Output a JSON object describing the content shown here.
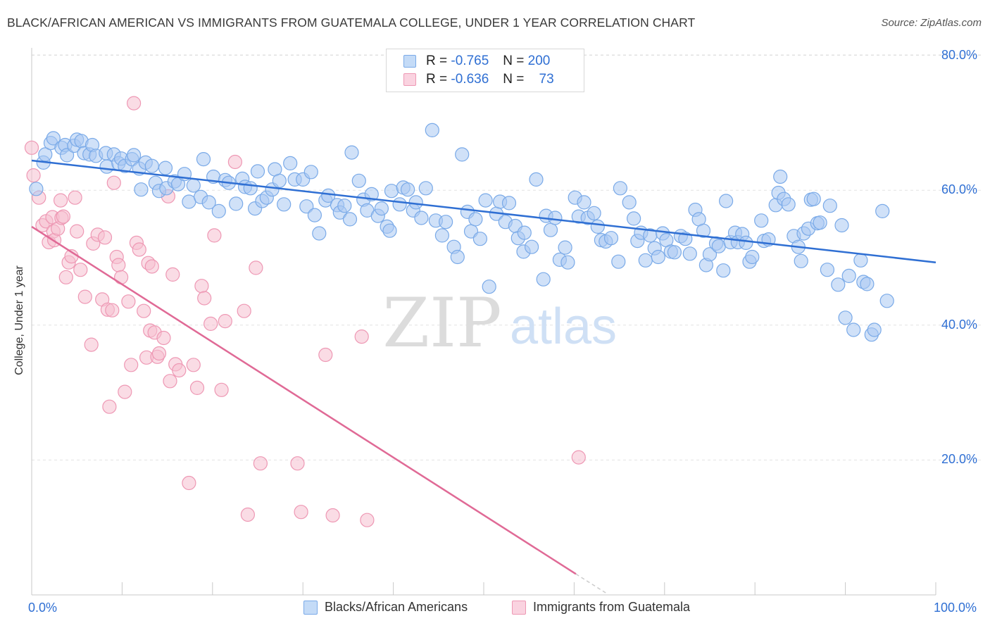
{
  "header": {
    "title": "BLACK/AFRICAN AMERICAN VS IMMIGRANTS FROM GUATEMALA COLLEGE, UNDER 1 YEAR CORRELATION CHART",
    "source": "Source: ZipAtlas.com"
  },
  "watermark": {
    "zip": "ZIP",
    "atlas": "atlas"
  },
  "legend_stats": {
    "rows": [
      {
        "r_label": "R =",
        "r_value": "-0.765",
        "n_label": "N =",
        "n_value": "200"
      },
      {
        "r_label": "R =",
        "r_value": "-0.636",
        "n_label": "N =",
        "n_value": "73"
      }
    ]
  },
  "colors": {
    "blue_fill": "#a9c8f3",
    "blue_stroke": "#7aaae8",
    "blue_line": "#2f6fd3",
    "pink_fill": "#f6bfd0",
    "pink_stroke": "#ee98b4",
    "pink_line": "#e06a96",
    "tick_label": "#2f6fd3",
    "grid": "#e2e2e2"
  },
  "chart_data": {
    "type": "scatter",
    "title": "BLACK/AFRICAN AMERICAN VS IMMIGRANTS FROM GUATEMALA COLLEGE, UNDER 1 YEAR CORRELATION CHART",
    "xlabel": "",
    "ylabel": "College, Under 1 year",
    "xlim": [
      0,
      100
    ],
    "ylim": [
      0,
      85
    ],
    "x_ticks": [
      "0.0%",
      "100.0%"
    ],
    "y_ticks": [
      {
        "value": 20,
        "label": "20.0%"
      },
      {
        "value": 40,
        "label": "40.0%"
      },
      {
        "value": 60,
        "label": "60.0%"
      },
      {
        "value": 80,
        "label": "80.0%"
      }
    ],
    "grid": true,
    "legend_position": "bottom",
    "series": [
      {
        "name": "Blacks/African Americans",
        "color": "#a9c8f3",
        "trend": {
          "x": [
            0,
            100
          ],
          "y": [
            64.4,
            49.3
          ]
        },
        "points": [
          [
            0.5,
            60.2
          ],
          [
            1.3,
            64.1
          ],
          [
            1.5,
            65.3
          ],
          [
            2.1,
            67
          ],
          [
            2.4,
            67.7
          ],
          [
            3.3,
            66.3
          ],
          [
            3.7,
            66.7
          ],
          [
            3.9,
            65.2
          ],
          [
            4.7,
            66.6
          ],
          [
            5,
            67.5
          ],
          [
            5.5,
            67.3
          ],
          [
            5.8,
            65.5
          ],
          [
            6.4,
            65.3
          ],
          [
            6.7,
            66.7
          ],
          [
            7.1,
            65.1
          ],
          [
            8.2,
            65.5
          ],
          [
            8.3,
            63.5
          ],
          [
            9.1,
            65.3
          ],
          [
            9.6,
            64
          ],
          [
            9.9,
            64.7
          ],
          [
            10.3,
            63.6
          ],
          [
            11.1,
            64.6
          ],
          [
            11.3,
            65.2
          ],
          [
            11.9,
            63.2
          ],
          [
            12.1,
            60.1
          ],
          [
            12.6,
            64.1
          ],
          [
            13.3,
            63.6
          ],
          [
            13.7,
            61.1
          ],
          [
            14.1,
            59.9
          ],
          [
            14.8,
            63.3
          ],
          [
            14.9,
            60.3
          ],
          [
            15.8,
            61.3
          ],
          [
            16.2,
            60.9
          ],
          [
            16.9,
            62.4
          ],
          [
            17.4,
            58.3
          ],
          [
            17.9,
            60.7
          ],
          [
            18.7,
            59
          ],
          [
            19,
            64.6
          ],
          [
            19.6,
            58.2
          ],
          [
            20.1,
            62
          ],
          [
            20.7,
            56.9
          ],
          [
            21.4,
            61.5
          ],
          [
            21.8,
            61.1
          ],
          [
            22.6,
            58
          ],
          [
            23.3,
            61.7
          ],
          [
            23.6,
            60.5
          ],
          [
            24.2,
            60.3
          ],
          [
            24.7,
            57.3
          ],
          [
            25,
            62.8
          ],
          [
            25.5,
            58.4
          ],
          [
            26,
            58.9
          ],
          [
            26.6,
            60.1
          ],
          [
            26.9,
            63.1
          ],
          [
            27.4,
            61.4
          ],
          [
            27.9,
            57.9
          ],
          [
            28.6,
            64
          ],
          [
            29.1,
            61.6
          ],
          [
            30,
            61.6
          ],
          [
            30.4,
            57.6
          ],
          [
            30.9,
            62.7
          ],
          [
            31.3,
            56.3
          ],
          [
            31.8,
            53.6
          ],
          [
            32.5,
            58.5
          ],
          [
            32.8,
            59.2
          ],
          [
            33.8,
            57.8
          ],
          [
            34.1,
            56.7
          ],
          [
            34.6,
            57.7
          ],
          [
            35.2,
            55.7
          ],
          [
            35.4,
            65.6
          ],
          [
            36.2,
            61.4
          ],
          [
            36.7,
            58.6
          ],
          [
            37.1,
            57
          ],
          [
            37.6,
            59.4
          ],
          [
            38.3,
            56.2
          ],
          [
            38.7,
            57.3
          ],
          [
            39.3,
            54.6
          ],
          [
            39.6,
            54
          ],
          [
            39.8,
            59.9
          ],
          [
            40.7,
            57.9
          ],
          [
            41.1,
            60.4
          ],
          [
            41.6,
            60.1
          ],
          [
            42.2,
            57
          ],
          [
            42.5,
            58.2
          ],
          [
            43.1,
            55.9
          ],
          [
            43.6,
            60.3
          ],
          [
            44.3,
            68.9
          ],
          [
            44.7,
            55.5
          ],
          [
            45.4,
            53.3
          ],
          [
            45.8,
            55.3
          ],
          [
            46.7,
            51.6
          ],
          [
            47.1,
            50.1
          ],
          [
            47.6,
            65.3
          ],
          [
            48.2,
            56.8
          ],
          [
            48.6,
            53.9
          ],
          [
            49.1,
            55.7
          ],
          [
            49.6,
            52.8
          ],
          [
            50.2,
            58.5
          ],
          [
            50.6,
            45.7
          ],
          [
            51.4,
            56.5
          ],
          [
            51.8,
            58.3
          ],
          [
            52.4,
            55.3
          ],
          [
            52.8,
            58.1
          ],
          [
            53.5,
            54.7
          ],
          [
            53.8,
            52.9
          ],
          [
            54.4,
            50.9
          ],
          [
            54.5,
            53.7
          ],
          [
            55.3,
            51.6
          ],
          [
            55.8,
            61.6
          ],
          [
            56.6,
            46.8
          ],
          [
            56.9,
            56.2
          ],
          [
            57.4,
            54.1
          ],
          [
            57.9,
            55.9
          ],
          [
            58.4,
            49.7
          ],
          [
            59,
            51.5
          ],
          [
            59.3,
            49.3
          ],
          [
            60.1,
            58.9
          ],
          [
            60.5,
            56.1
          ],
          [
            61.1,
            58.2
          ],
          [
            61.5,
            55.9
          ],
          [
            62.2,
            56.6
          ],
          [
            62.6,
            54.6
          ],
          [
            63,
            52.6
          ],
          [
            63.5,
            52.4
          ],
          [
            64.1,
            52.9
          ],
          [
            64.9,
            49.4
          ],
          [
            65.1,
            60.3
          ],
          [
            66.1,
            58.2
          ],
          [
            66.6,
            55.8
          ],
          [
            67,
            52.5
          ],
          [
            67.4,
            53.7
          ],
          [
            67.9,
            49.6
          ],
          [
            68.4,
            53.3
          ],
          [
            68.9,
            51.4
          ],
          [
            69.3,
            50.1
          ],
          [
            69.8,
            53.6
          ],
          [
            70.2,
            52.6
          ],
          [
            70.7,
            50.9
          ],
          [
            71.1,
            50.8
          ],
          [
            71.8,
            53.2
          ],
          [
            72.3,
            52.8
          ],
          [
            72.8,
            50.6
          ],
          [
            73.4,
            57.1
          ],
          [
            73.8,
            55.7
          ],
          [
            74.3,
            54
          ],
          [
            74.6,
            48.9
          ],
          [
            75,
            50.5
          ],
          [
            75.7,
            52.1
          ],
          [
            76,
            51.7
          ],
          [
            76.5,
            48.1
          ],
          [
            76.8,
            58.4
          ],
          [
            77.3,
            52.3
          ],
          [
            77.8,
            53.7
          ],
          [
            78.1,
            52.3
          ],
          [
            78.6,
            53.5
          ],
          [
            79,
            52.2
          ],
          [
            79.4,
            49.4
          ],
          [
            79.7,
            50.1
          ],
          [
            80.7,
            55.5
          ],
          [
            81,
            52.5
          ],
          [
            81.5,
            52.7
          ],
          [
            82.3,
            57.8
          ],
          [
            82.6,
            59.6
          ],
          [
            82.8,
            62
          ],
          [
            83.2,
            58.7
          ],
          [
            83.7,
            57.9
          ],
          [
            84.3,
            53.2
          ],
          [
            84.8,
            51.6
          ],
          [
            85.1,
            49.5
          ],
          [
            85.4,
            53.6
          ],
          [
            85.9,
            54.3
          ],
          [
            86.2,
            58.6
          ],
          [
            86.5,
            58.7
          ],
          [
            86.9,
            55.1
          ],
          [
            87.2,
            55.2
          ],
          [
            88,
            48.2
          ],
          [
            88.3,
            57.7
          ],
          [
            89.2,
            46
          ],
          [
            89.6,
            54.8
          ],
          [
            90,
            41.1
          ],
          [
            90.4,
            47.3
          ],
          [
            90.9,
            39.3
          ],
          [
            91.7,
            49.6
          ],
          [
            92,
            46.4
          ],
          [
            92.4,
            46.1
          ],
          [
            92.9,
            38.6
          ],
          [
            93.2,
            39.3
          ],
          [
            94.1,
            56.9
          ],
          [
            94.6,
            43.6
          ]
        ]
      },
      {
        "name": "Immigrants from Guatemala",
        "color": "#f6bfd0",
        "trend": {
          "x": [
            0,
            60.2
          ],
          "y": [
            54.6,
            3.1
          ]
        },
        "trend_dashed": {
          "x": [
            60.2,
            63.5
          ],
          "y": [
            3.1,
            0.3
          ]
        },
        "points": [
          [
            0,
            66.3
          ],
          [
            0.2,
            62.2
          ],
          [
            0.8,
            58.9
          ],
          [
            1.2,
            54.8
          ],
          [
            1.6,
            55.4
          ],
          [
            1.9,
            52.3
          ],
          [
            2.3,
            56
          ],
          [
            2.4,
            53.9
          ],
          [
            2.5,
            52.6
          ],
          [
            2.9,
            54.3
          ],
          [
            3.2,
            58.5
          ],
          [
            3.3,
            55.9
          ],
          [
            3.5,
            56.1
          ],
          [
            3.8,
            47.1
          ],
          [
            4.1,
            49.3
          ],
          [
            4.4,
            50.2
          ],
          [
            4.8,
            58.9
          ],
          [
            5,
            53.9
          ],
          [
            5.4,
            48.2
          ],
          [
            5.9,
            44.2
          ],
          [
            6.6,
            37.1
          ],
          [
            6.8,
            52.1
          ],
          [
            7.3,
            53.4
          ],
          [
            7.8,
            43.8
          ],
          [
            8.1,
            53
          ],
          [
            8.4,
            42.3
          ],
          [
            8.6,
            27.9
          ],
          [
            8.9,
            42.2
          ],
          [
            9.1,
            61.1
          ],
          [
            9.4,
            50.1
          ],
          [
            9.6,
            48.9
          ],
          [
            9.9,
            47.1
          ],
          [
            10.3,
            30.1
          ],
          [
            10.7,
            43.5
          ],
          [
            11,
            34.1
          ],
          [
            11.3,
            72.9
          ],
          [
            11.6,
            52.2
          ],
          [
            11.9,
            51.2
          ],
          [
            12.4,
            42.1
          ],
          [
            12.7,
            35.2
          ],
          [
            12.9,
            49.2
          ],
          [
            13.1,
            39.2
          ],
          [
            13.3,
            48.7
          ],
          [
            13.6,
            38.9
          ],
          [
            13.9,
            35.3
          ],
          [
            14.1,
            35.8
          ],
          [
            14.6,
            38.1
          ],
          [
            15.1,
            59.1
          ],
          [
            15.3,
            31.7
          ],
          [
            15.6,
            47.5
          ],
          [
            15.9,
            34.2
          ],
          [
            16.3,
            33.3
          ],
          [
            17.4,
            16.6
          ],
          [
            17.9,
            34.1
          ],
          [
            18.3,
            30.7
          ],
          [
            18.8,
            45.8
          ],
          [
            19.1,
            44
          ],
          [
            19.8,
            40.2
          ],
          [
            20.2,
            53.3
          ],
          [
            21,
            30.4
          ],
          [
            21.4,
            40.6
          ],
          [
            22.5,
            64.2
          ],
          [
            23.5,
            42.1
          ],
          [
            23.9,
            11.9
          ],
          [
            24.8,
            48.5
          ],
          [
            25.3,
            19.5
          ],
          [
            29.4,
            19.5
          ],
          [
            29.8,
            12.3
          ],
          [
            32.5,
            35.6
          ],
          [
            33.3,
            11.8
          ],
          [
            36.5,
            38.3
          ],
          [
            37.1,
            11.1
          ],
          [
            60.5,
            20.4
          ]
        ]
      }
    ]
  }
}
